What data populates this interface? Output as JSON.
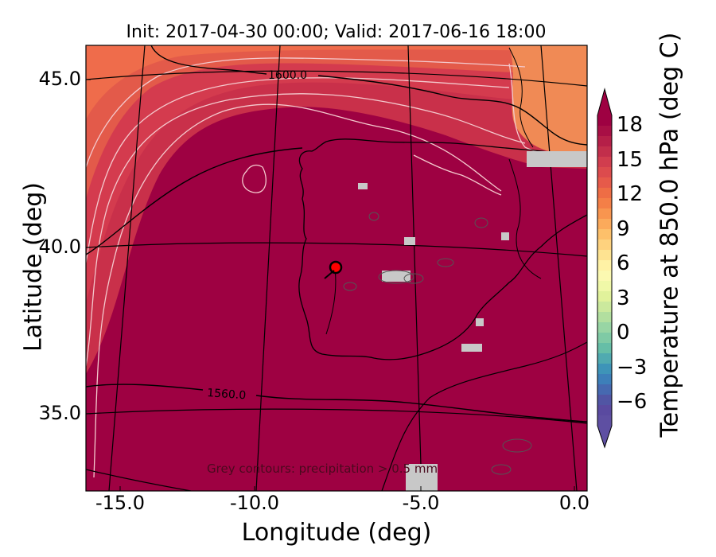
{
  "title": "Init: 2017-04-30 00:00; Valid: 2017-06-16 18:00",
  "axes": {
    "xlabel": "Longitude (deg)",
    "ylabel": "Latitude (deg)",
    "xticks": [
      "-15.0",
      "-10.0",
      "-5.0",
      "0.0"
    ],
    "yticks": [
      "45.0",
      "40.0",
      "35.0"
    ],
    "xlim": [
      -16,
      0.2
    ],
    "ylim": [
      32.8,
      46.2
    ]
  },
  "colorbar": {
    "label": "Temperature at 850.0 hPa (deg C)",
    "ticks": [
      "18",
      "15",
      "12",
      "9",
      "6",
      "3",
      "0",
      "−3",
      "−6"
    ],
    "range": [
      -8,
      20
    ],
    "colormap": "Spectral_r"
  },
  "contours": {
    "height_labels": [
      "1600.0",
      "1560.0"
    ]
  },
  "annotation": "Grey contours: precipitation > 0.5 mm",
  "marker": {
    "lon": -7.6,
    "lat": 39.3,
    "color": "#ff0000"
  },
  "colors": {
    "hot": "#9e0142",
    "warm": "#c9304a",
    "warmer2": "#d53e4f",
    "cool": "#e85f4a",
    "coolest": "#f06d4b",
    "precip": "#c8c8c8"
  }
}
